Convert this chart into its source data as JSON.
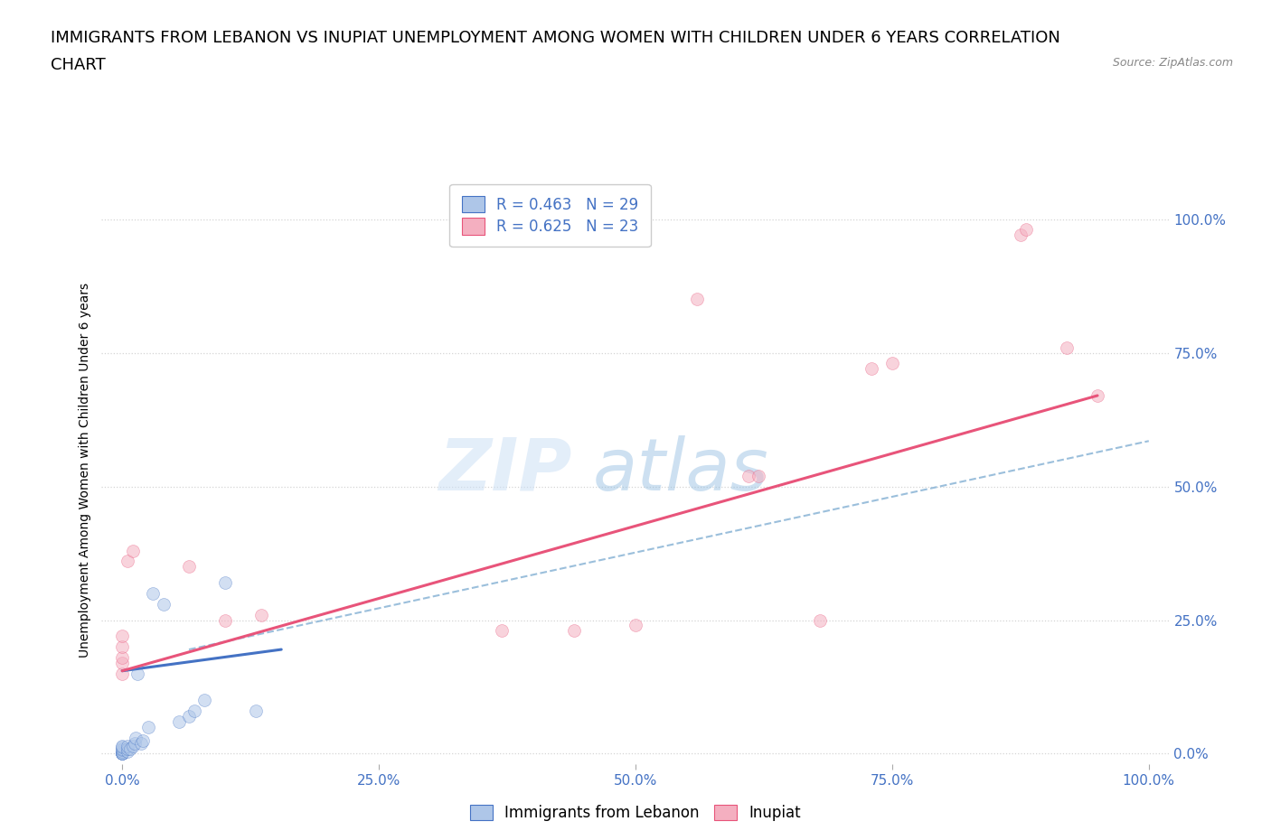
{
  "title_line1": "IMMIGRANTS FROM LEBANON VS INUPIAT UNEMPLOYMENT AMONG WOMEN WITH CHILDREN UNDER 6 YEARS CORRELATION",
  "title_line2": "CHART",
  "source": "Source: ZipAtlas.com",
  "ylabel": "Unemployment Among Women with Children Under 6 years",
  "legend_label1": "Immigrants from Lebanon",
  "legend_label2": "Inupiat",
  "R1": 0.463,
  "N1": 29,
  "R2": 0.625,
  "N2": 23,
  "blue_color": "#aec6e8",
  "blue_line_color": "#4472c4",
  "pink_color": "#f4afc0",
  "pink_line_color": "#e8547a",
  "dashed_line_color": "#90b8d8",
  "grid_color": "#d0d0d0",
  "tick_label_color": "#4472c4",
  "watermark_zip": "ZIP",
  "watermark_atlas": "atlas",
  "blue_scatter_x": [
    0.0,
    0.0,
    0.0,
    0.0,
    0.0,
    0.0,
    0.0,
    0.0,
    0.0,
    0.0,
    0.005,
    0.005,
    0.005,
    0.008,
    0.01,
    0.012,
    0.013,
    0.015,
    0.018,
    0.02,
    0.025,
    0.03,
    0.04,
    0.055,
    0.065,
    0.07,
    0.08,
    0.1,
    0.13
  ],
  "blue_scatter_y": [
    0.0,
    0.0,
    0.0,
    0.0,
    0.0,
    0.005,
    0.008,
    0.01,
    0.012,
    0.015,
    0.005,
    0.01,
    0.015,
    0.01,
    0.015,
    0.02,
    0.03,
    0.15,
    0.02,
    0.025,
    0.05,
    0.3,
    0.28,
    0.06,
    0.07,
    0.08,
    0.1,
    0.32,
    0.08
  ],
  "pink_scatter_x": [
    0.0,
    0.0,
    0.0,
    0.0,
    0.0,
    0.005,
    0.01,
    0.065,
    0.1,
    0.135,
    0.37,
    0.44,
    0.5,
    0.56,
    0.61,
    0.62,
    0.68,
    0.73,
    0.75,
    0.875,
    0.88,
    0.92,
    0.95
  ],
  "pink_scatter_y": [
    0.15,
    0.17,
    0.18,
    0.2,
    0.22,
    0.36,
    0.38,
    0.35,
    0.25,
    0.26,
    0.23,
    0.23,
    0.24,
    0.85,
    0.52,
    0.52,
    0.25,
    0.72,
    0.73,
    0.97,
    0.98,
    0.76,
    0.67
  ],
  "blue_line_x": [
    0.0,
    0.155
  ],
  "blue_line_y": [
    0.155,
    0.195
  ],
  "pink_line_x": [
    0.0,
    0.95
  ],
  "pink_line_y": [
    0.155,
    0.67
  ],
  "dashed_line_x": [
    0.065,
    1.0
  ],
  "dashed_line_y": [
    0.195,
    0.585
  ],
  "xlim": [
    -0.02,
    1.02
  ],
  "ylim": [
    -0.02,
    1.08
  ],
  "xtick_positions": [
    0.0,
    0.25,
    0.5,
    0.75,
    1.0
  ],
  "xtick_labels": [
    "0.0%",
    "25.0%",
    "50.0%",
    "75.0%",
    "100.0%"
  ],
  "ytick_positions": [
    0.0,
    0.25,
    0.5,
    0.75,
    1.0
  ],
  "ytick_labels": [
    "0.0%",
    "25.0%",
    "50.0%",
    "75.0%",
    "100.0%"
  ],
  "background_color": "#ffffff",
  "plot_bg_color": "#ffffff",
  "title_fontsize": 13,
  "axis_label_fontsize": 10,
  "tick_fontsize": 11,
  "legend_fontsize": 12,
  "scatter_size": 100,
  "scatter_alpha": 0.55
}
